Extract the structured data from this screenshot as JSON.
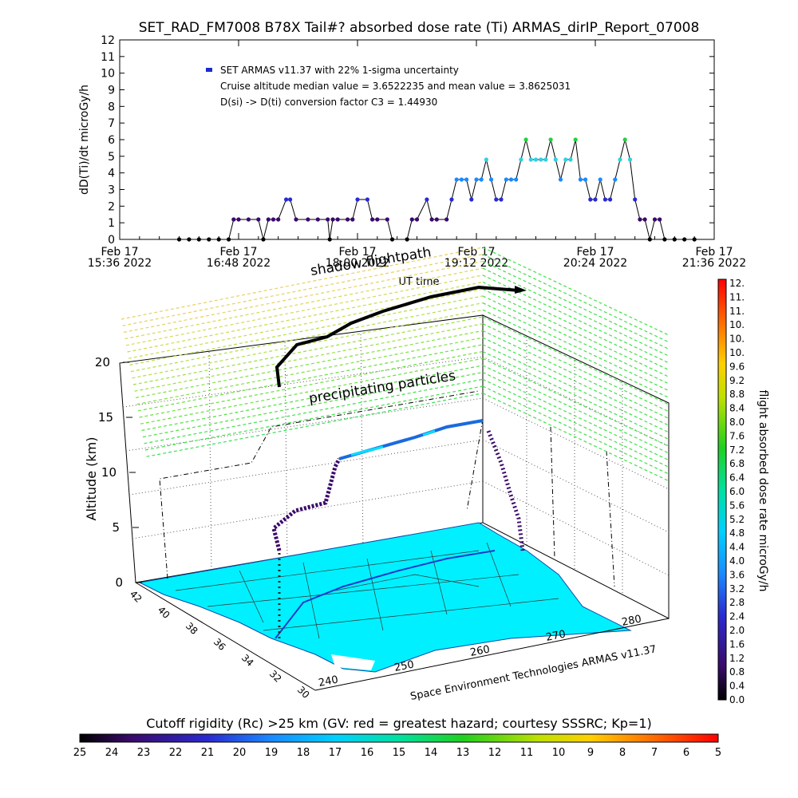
{
  "title": "SET_RAD_FM7008  B78X Tail#? absorbed dose rate (Ti) ARMAS_dirIP_Report_07008",
  "chart_data": [
    {
      "type": "scatter",
      "ylabel": "dD(Ti)/dt microGy/h",
      "xlabel": "UT time",
      "ylim": [
        0,
        12
      ],
      "yticks": [
        "0",
        "1",
        "2",
        "3",
        "4",
        "5",
        "6",
        "7",
        "8",
        "9",
        "10",
        "11",
        "12"
      ],
      "xticks": [
        {
          "date": "Feb 17",
          "time": "15:36 2022"
        },
        {
          "date": "Feb 17",
          "time": "16:48 2022"
        },
        {
          "date": "Feb 17",
          "time": "18:00 2022"
        },
        {
          "date": "Feb 17",
          "time": "19:12 2022"
        },
        {
          "date": "Feb 17",
          "time": "20:24 2022"
        },
        {
          "date": "Feb 17",
          "time": "21:36 2022"
        }
      ],
      "xlim_hours": [
        15.6,
        21.6
      ],
      "legend": {
        "series": "SET ARMAS v11.37 with 22% 1-sigma uncertainty",
        "line2": "Cruise altitude median value = 3.6522235 and mean value = 3.8625031",
        "line3": "D(si) -> D(ti) conversion factor C3 = 1.44930"
      },
      "dose_series": [
        [
          16.2,
          0
        ],
        [
          16.3,
          0
        ],
        [
          16.4,
          0
        ],
        [
          16.5,
          0
        ],
        [
          16.6,
          0
        ],
        [
          16.7,
          0
        ],
        [
          16.75,
          1.2
        ],
        [
          16.8,
          1.2
        ],
        [
          16.9,
          1.2
        ],
        [
          17.0,
          1.2
        ],
        [
          17.05,
          0
        ],
        [
          17.1,
          1.2
        ],
        [
          17.15,
          1.2
        ],
        [
          17.2,
          1.2
        ],
        [
          17.28,
          2.4
        ],
        [
          17.32,
          2.4
        ],
        [
          17.38,
          1.2
        ],
        [
          17.5,
          1.2
        ],
        [
          17.6,
          1.2
        ],
        [
          17.7,
          1.2
        ],
        [
          17.72,
          0
        ],
        [
          17.75,
          1.2
        ],
        [
          17.8,
          1.2
        ],
        [
          17.9,
          1.2
        ],
        [
          17.95,
          1.2
        ],
        [
          18.0,
          2.4
        ],
        [
          18.1,
          2.4
        ],
        [
          18.15,
          1.2
        ],
        [
          18.2,
          1.2
        ],
        [
          18.3,
          1.2
        ],
        [
          18.35,
          0
        ],
        [
          18.5,
          0
        ],
        [
          18.55,
          1.2
        ],
        [
          18.6,
          1.2
        ],
        [
          18.7,
          2.4
        ],
        [
          18.75,
          1.2
        ],
        [
          18.8,
          1.2
        ],
        [
          18.9,
          1.2
        ],
        [
          18.95,
          2.4
        ],
        [
          19.0,
          3.6
        ],
        [
          19.05,
          3.6
        ],
        [
          19.1,
          3.6
        ],
        [
          19.15,
          2.4
        ],
        [
          19.2,
          3.6
        ],
        [
          19.25,
          3.6
        ],
        [
          19.3,
          4.8
        ],
        [
          19.35,
          3.6
        ],
        [
          19.4,
          2.4
        ],
        [
          19.45,
          2.4
        ],
        [
          19.5,
          3.6
        ],
        [
          19.55,
          3.6
        ],
        [
          19.6,
          3.6
        ],
        [
          19.65,
          4.8
        ],
        [
          19.7,
          6.0
        ],
        [
          19.75,
          4.8
        ],
        [
          19.8,
          4.8
        ],
        [
          19.85,
          4.8
        ],
        [
          19.9,
          4.8
        ],
        [
          19.95,
          6.0
        ],
        [
          20.0,
          4.8
        ],
        [
          20.05,
          3.6
        ],
        [
          20.1,
          4.8
        ],
        [
          20.15,
          4.8
        ],
        [
          20.2,
          6.0
        ],
        [
          20.25,
          3.6
        ],
        [
          20.3,
          3.6
        ],
        [
          20.35,
          2.4
        ],
        [
          20.4,
          2.4
        ],
        [
          20.45,
          3.6
        ],
        [
          20.5,
          2.4
        ],
        [
          20.55,
          2.4
        ],
        [
          20.6,
          3.6
        ],
        [
          20.65,
          4.8
        ],
        [
          20.7,
          6.0
        ],
        [
          20.75,
          4.8
        ],
        [
          20.8,
          2.4
        ],
        [
          20.85,
          1.2
        ],
        [
          20.9,
          1.2
        ],
        [
          20.95,
          0
        ],
        [
          21.0,
          1.2
        ],
        [
          21.05,
          1.2
        ],
        [
          21.1,
          0
        ],
        [
          21.2,
          0
        ],
        [
          21.3,
          0
        ],
        [
          21.4,
          0
        ]
      ]
    },
    {
      "type": "scatter",
      "annotations": [
        "shadow flightpath",
        "precipitating particles"
      ],
      "zlabel": "Altitude (km)",
      "zticks": [
        "0",
        "5",
        "10",
        "15",
        "20"
      ],
      "lat_ticks": [
        "42",
        "40",
        "38",
        "36",
        "34",
        "32",
        "30"
      ],
      "lon_ticks": [
        "240",
        "250",
        "260",
        "270",
        "280"
      ],
      "footer": "Space Environment Technologies ARMAS v11.37"
    }
  ],
  "colorbar_right": {
    "label": "flight absorbed dose rate microGy/h",
    "ticks": [
      "12.",
      "11.",
      "11.",
      "10.",
      "10.",
      "10.",
      "9.6",
      "9.2",
      "8.8",
      "8.4",
      "8.0",
      "7.6",
      "7.2",
      "6.8",
      "6.4",
      "6.0",
      "5.6",
      "5.2",
      "4.8",
      "4.4",
      "4.0",
      "3.6",
      "3.2",
      "2.8",
      "2.4",
      "2.0",
      "1.6",
      "1.2",
      "0.8",
      "0.4",
      "0.0"
    ]
  },
  "colorbar_bottom": {
    "label": "Cutoff rigidity (Rc) >25 km (GV: red = greatest hazard; courtesy SSSRC; Kp=1)",
    "ticks": [
      "25",
      "24",
      "23",
      "22",
      "21",
      "20",
      "19",
      "18",
      "17",
      "16",
      "15",
      "14",
      "13",
      "12",
      "11",
      "10",
      "9",
      "8",
      "7",
      "6",
      "5"
    ]
  }
}
